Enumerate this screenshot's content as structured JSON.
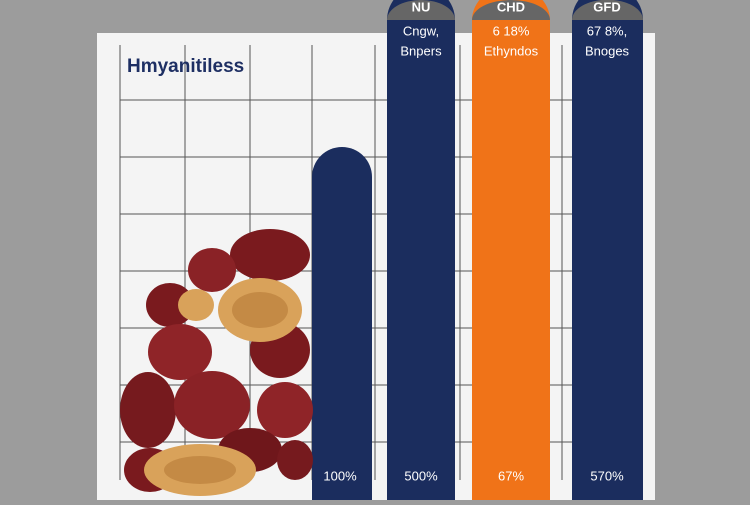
{
  "title": "Hmyanitiless",
  "bars": [
    {
      "bottom_label": "100%"
    },
    {
      "header": "NU",
      "caption": [
        "Cngw,",
        "Bnpers"
      ],
      "bottom_label": "500%"
    },
    {
      "header": "CHD",
      "caption": [
        "6 18%",
        "Ethyndos"
      ],
      "bottom_label": "67%"
    },
    {
      "header": "GFD",
      "caption": [
        "67 8%,",
        "Bnoges"
      ],
      "bottom_label": "570%"
    }
  ]
}
